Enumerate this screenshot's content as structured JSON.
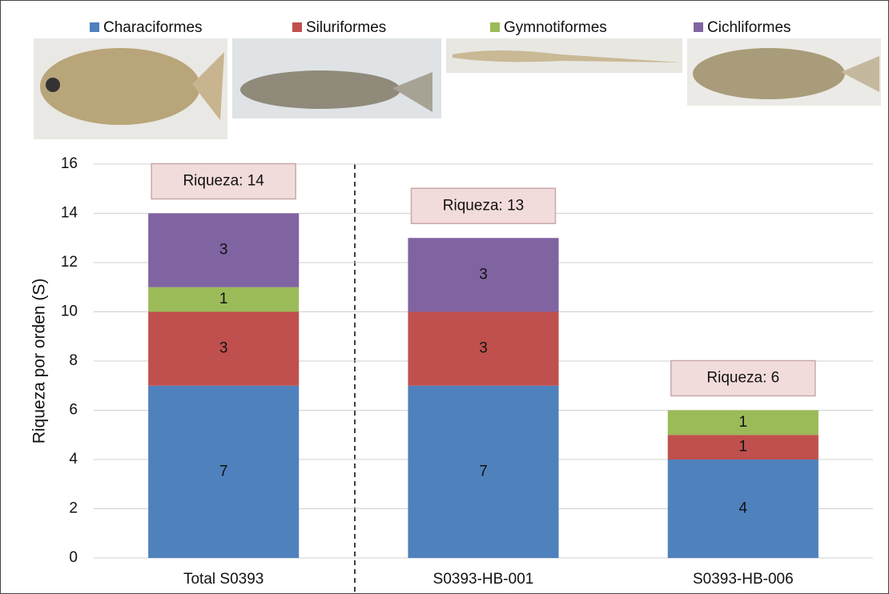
{
  "chart_data": {
    "type": "stacked_bar",
    "categories": [
      "Total S0393",
      "S0393-HB-001",
      "S0393-HB-006"
    ],
    "series": [
      {
        "name": "Characiformes",
        "color": "#4f81bd",
        "values": [
          7,
          7,
          4
        ]
      },
      {
        "name": "Siluriformes",
        "color": "#c0504d",
        "values": [
          3,
          3,
          1
        ]
      },
      {
        "name": "Gymnotiformes",
        "color": "#9bbb59",
        "values": [
          1,
          null,
          1
        ]
      },
      {
        "name": "Cichliformes",
        "color": "#8064a2",
        "values": [
          3,
          3,
          null
        ]
      }
    ],
    "annotations": [
      "Riqueza: 14",
      "Riqueza: 13",
      "Riqueza: 6"
    ],
    "y_label": "Riqueza por orden (S)",
    "ylim": [
      0,
      16
    ],
    "yticks": [
      0,
      2,
      4,
      6,
      8,
      10,
      12,
      14,
      16
    ],
    "grid": true
  }
}
